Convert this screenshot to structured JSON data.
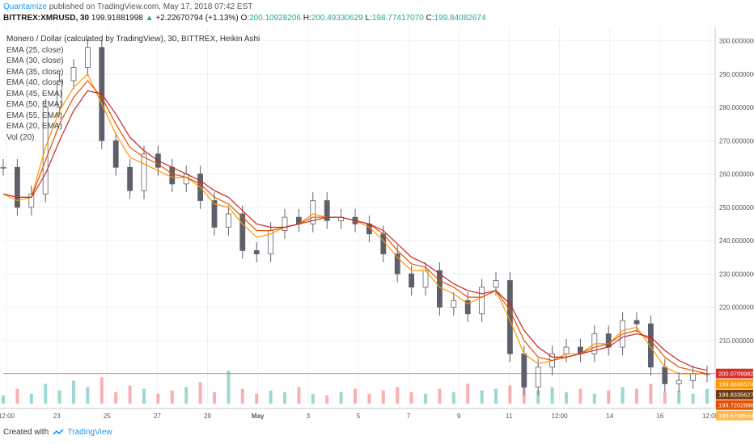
{
  "header": {
    "brand": "Quantamize",
    "published": "published on TradingView.com, May 17, 2018 07:42 EST",
    "symbol": "BITTREX:XMRUSD, 30",
    "last": "199.91881998",
    "change_arrow": "▲",
    "change": "+2.22670794 (+1.13%)",
    "o_label": "O:",
    "o": "200.10928206",
    "h_label": "H:",
    "h": "200.49330629",
    "l_label": "L:",
    "l": "198.77417070",
    "c_label": "C:",
    "c": "199.84082674"
  },
  "legend": {
    "title": "Monero / Dollar (calculated by TradingView), 30, BITTREX, Heikin Ashi",
    "indicators": [
      "EMA (25, close)",
      "EMA (30, close)",
      "EMA (35, close)",
      "EMA (40, close)",
      "EMA (45, EMA)",
      "EMA (50, EMA)",
      "EMA (55, EMA)",
      "EMA (20, EMA)",
      "Vol (20)"
    ]
  },
  "footer": {
    "created_with": "Created with",
    "tradingview": "TradingView"
  },
  "colors": {
    "up": "#26a69a",
    "down": "#ef5350",
    "candle": "#5d606b",
    "ema_fast": "#ff9800",
    "ema_mid": "#e65100",
    "ema_slow": "#c62828",
    "ema_light": "#ffcc80",
    "price_line": "#d32f2f",
    "grid": "#eef0f3"
  },
  "chart_data": {
    "type": "line",
    "title": "Monero / Dollar (calculated by TradingView), 30, BITTREX, Heikin Ashi",
    "y_axis": {
      "ticks": [
        "300.00000000",
        "290.00000000",
        "280.00000000",
        "270.00000000",
        "260.00000000",
        "250.00000000",
        "240.00000000",
        "230.00000000",
        "220.00000000",
        "210.00000000"
      ],
      "ylim": [
        192,
        304
      ]
    },
    "x_axis": {
      "labels": [
        "12:00",
        "23",
        "25",
        "27",
        "29",
        "May",
        "3",
        "5",
        "7",
        "9",
        "11",
        "12:00",
        "14",
        "16",
        "12:00"
      ],
      "range": [
        0,
        100
      ]
    },
    "price": {
      "x": [
        0,
        2,
        4,
        6,
        8,
        10,
        12,
        14,
        16,
        18,
        20,
        22,
        24,
        26,
        28,
        30,
        32,
        34,
        36,
        38,
        40,
        42,
        44,
        46,
        48,
        50,
        52,
        54,
        56,
        58,
        60,
        62,
        64,
        66,
        68,
        70,
        72,
        74,
        76,
        78,
        80,
        82,
        84,
        86,
        88,
        90,
        92,
        94,
        96,
        98,
        100
      ],
      "close": [
        262,
        250,
        254,
        280,
        288,
        292,
        298,
        270,
        262,
        255,
        266,
        262,
        257,
        260,
        252,
        244,
        248,
        237,
        236,
        243,
        247,
        245,
        252,
        246,
        247,
        245,
        242,
        236,
        230,
        226,
        231,
        220,
        222,
        218,
        226,
        228,
        206,
        196,
        202,
        206,
        208,
        206,
        212,
        208,
        216,
        215,
        202,
        197,
        198,
        200,
        200
      ]
    },
    "ema_series": [
      {
        "name": "EMA (25, close)",
        "values": [
          254,
          252,
          253,
          268,
          279,
          286,
          290,
          281,
          272,
          265,
          263,
          261,
          259,
          259,
          256,
          251,
          250,
          245,
          241,
          242,
          244,
          245,
          248,
          247,
          247,
          246,
          244,
          240,
          235,
          231,
          231,
          226,
          224,
          221,
          223,
          225,
          216,
          206,
          203,
          204,
          206,
          206,
          209,
          209,
          213,
          214,
          208,
          202,
          200,
          200,
          200
        ]
      },
      {
        "name": "EMA (35, close)",
        "values": [
          254,
          253,
          253,
          264,
          275,
          283,
          288,
          283,
          275,
          268,
          265,
          263,
          260,
          259,
          257,
          253,
          251,
          247,
          243,
          243,
          244,
          245,
          247,
          247,
          247,
          246,
          245,
          242,
          237,
          233,
          232,
          228,
          226,
          223,
          223,
          225,
          219,
          210,
          205,
          204,
          205,
          206,
          208,
          209,
          212,
          213,
          210,
          205,
          202,
          201,
          200
        ]
      },
      {
        "name": "EMA (45, EMA)",
        "values": [
          254,
          253,
          253,
          260,
          270,
          279,
          285,
          284,
          278,
          271,
          267,
          264,
          262,
          260,
          258,
          255,
          253,
          249,
          245,
          244,
          244,
          245,
          246,
          247,
          247,
          246,
          245,
          243,
          239,
          235,
          233,
          230,
          227,
          225,
          224,
          225,
          221,
          213,
          208,
          205,
          205,
          206,
          207,
          208,
          211,
          212,
          211,
          207,
          204,
          202,
          201
        ]
      }
    ],
    "volume": {
      "values": [
        5,
        9,
        6,
        12,
        8,
        14,
        10,
        16,
        7,
        11,
        9,
        6,
        8,
        10,
        13,
        7,
        20,
        9,
        6,
        8,
        7,
        10,
        6,
        5,
        7,
        9,
        6,
        8,
        10,
        7,
        6,
        9,
        7,
        12,
        8,
        9,
        11,
        13,
        8,
        10,
        7,
        9,
        6,
        8,
        10,
        9,
        12,
        7,
        8,
        6,
        9
      ]
    },
    "price_line": {
      "value": "200.07099822"
    },
    "right_labels": [
      {
        "text": "200.07099822",
        "color": "#d32f2f"
      },
      {
        "text": "199.86965740",
        "color": "#ff9800"
      },
      {
        "text": "199.83356278",
        "color": "#6d3a10"
      },
      {
        "text": "199.72028884",
        "color": "#e65100"
      },
      {
        "text": "199.67985448",
        "color": "#ffb74d"
      }
    ]
  }
}
